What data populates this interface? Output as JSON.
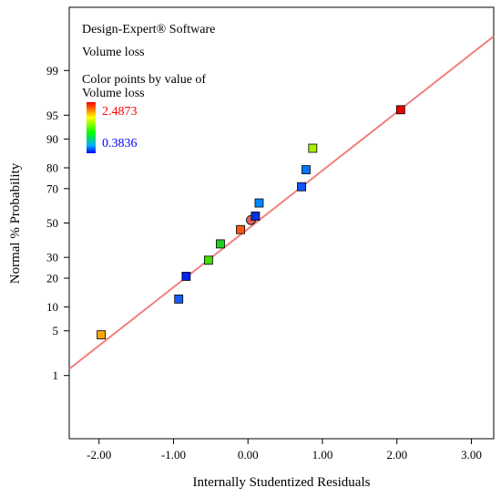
{
  "chart_data": {
    "type": "scatter",
    "software_label": "Design-Expert® Software",
    "response_label": "Volume loss",
    "color_legend": {
      "title_line1": "Color points by value of",
      "title_line2": "Volume loss",
      "max_label": "2.4873",
      "min_label": "0.3836",
      "max_value": 2.4873,
      "min_value": 0.3836,
      "max_color": "#ff0000",
      "min_color": "#0000ff"
    },
    "xlabel": "Internally Studentized Residuals",
    "ylabel": "Normal % Probability",
    "xlim": [
      -2.4,
      3.3
    ],
    "y_scale": "normal-probability",
    "ylim_percent": [
      0.05,
      99.95
    ],
    "x_ticks": [
      {
        "value": -2,
        "label": "-2.00"
      },
      {
        "value": -1,
        "label": "-1.00"
      },
      {
        "value": 0,
        "label": "0.00"
      },
      {
        "value": 1,
        "label": "1.00"
      },
      {
        "value": 2,
        "label": "2.00"
      },
      {
        "value": 3,
        "label": "3.00"
      }
    ],
    "y_ticks": [
      {
        "value": 1,
        "label": "1"
      },
      {
        "value": 5,
        "label": "5"
      },
      {
        "value": 10,
        "label": "10"
      },
      {
        "value": 20,
        "label": "20"
      },
      {
        "value": 30,
        "label": "30"
      },
      {
        "value": 50,
        "label": "50"
      },
      {
        "value": 70,
        "label": "70"
      },
      {
        "value": 80,
        "label": "80"
      },
      {
        "value": 90,
        "label": "90"
      },
      {
        "value": 95,
        "label": "95"
      },
      {
        "value": 99,
        "label": "99"
      }
    ],
    "reference_line": {
      "color": "#f08080",
      "points": [
        {
          "x": -2.4,
          "y": 1.3
        },
        {
          "x": 3.3,
          "y": 99.78
        }
      ]
    },
    "points": [
      {
        "x": -1.97,
        "y": 4.4,
        "color": "#ffa500",
        "shape": "square"
      },
      {
        "x": -0.93,
        "y": 12.3,
        "color": "#1a5cff",
        "shape": "square"
      },
      {
        "x": -0.83,
        "y": 20.8,
        "color": "#0022ee",
        "shape": "square"
      },
      {
        "x": -0.53,
        "y": 28.5,
        "color": "#44dd00",
        "shape": "square"
      },
      {
        "x": -0.37,
        "y": 37.5,
        "color": "#22cc22",
        "shape": "square"
      },
      {
        "x": -0.1,
        "y": 46.0,
        "color": "#ff5511",
        "shape": "square"
      },
      {
        "x": 0.04,
        "y": 51.8,
        "color": "#e06060",
        "shape": "circle"
      },
      {
        "x": 0.1,
        "y": 54.2,
        "color": "#0033dd",
        "shape": "square"
      },
      {
        "x": 0.15,
        "y": 62.0,
        "color": "#0088ff",
        "shape": "square"
      },
      {
        "x": 0.72,
        "y": 71.0,
        "color": "#1155ff",
        "shape": "square"
      },
      {
        "x": 0.78,
        "y": 79.2,
        "color": "#0077ff",
        "shape": "square"
      },
      {
        "x": 0.87,
        "y": 87.3,
        "color": "#aaee00",
        "shape": "square"
      },
      {
        "x": 2.05,
        "y": 95.8,
        "color": "#ee0000",
        "shape": "square"
      }
    ]
  }
}
